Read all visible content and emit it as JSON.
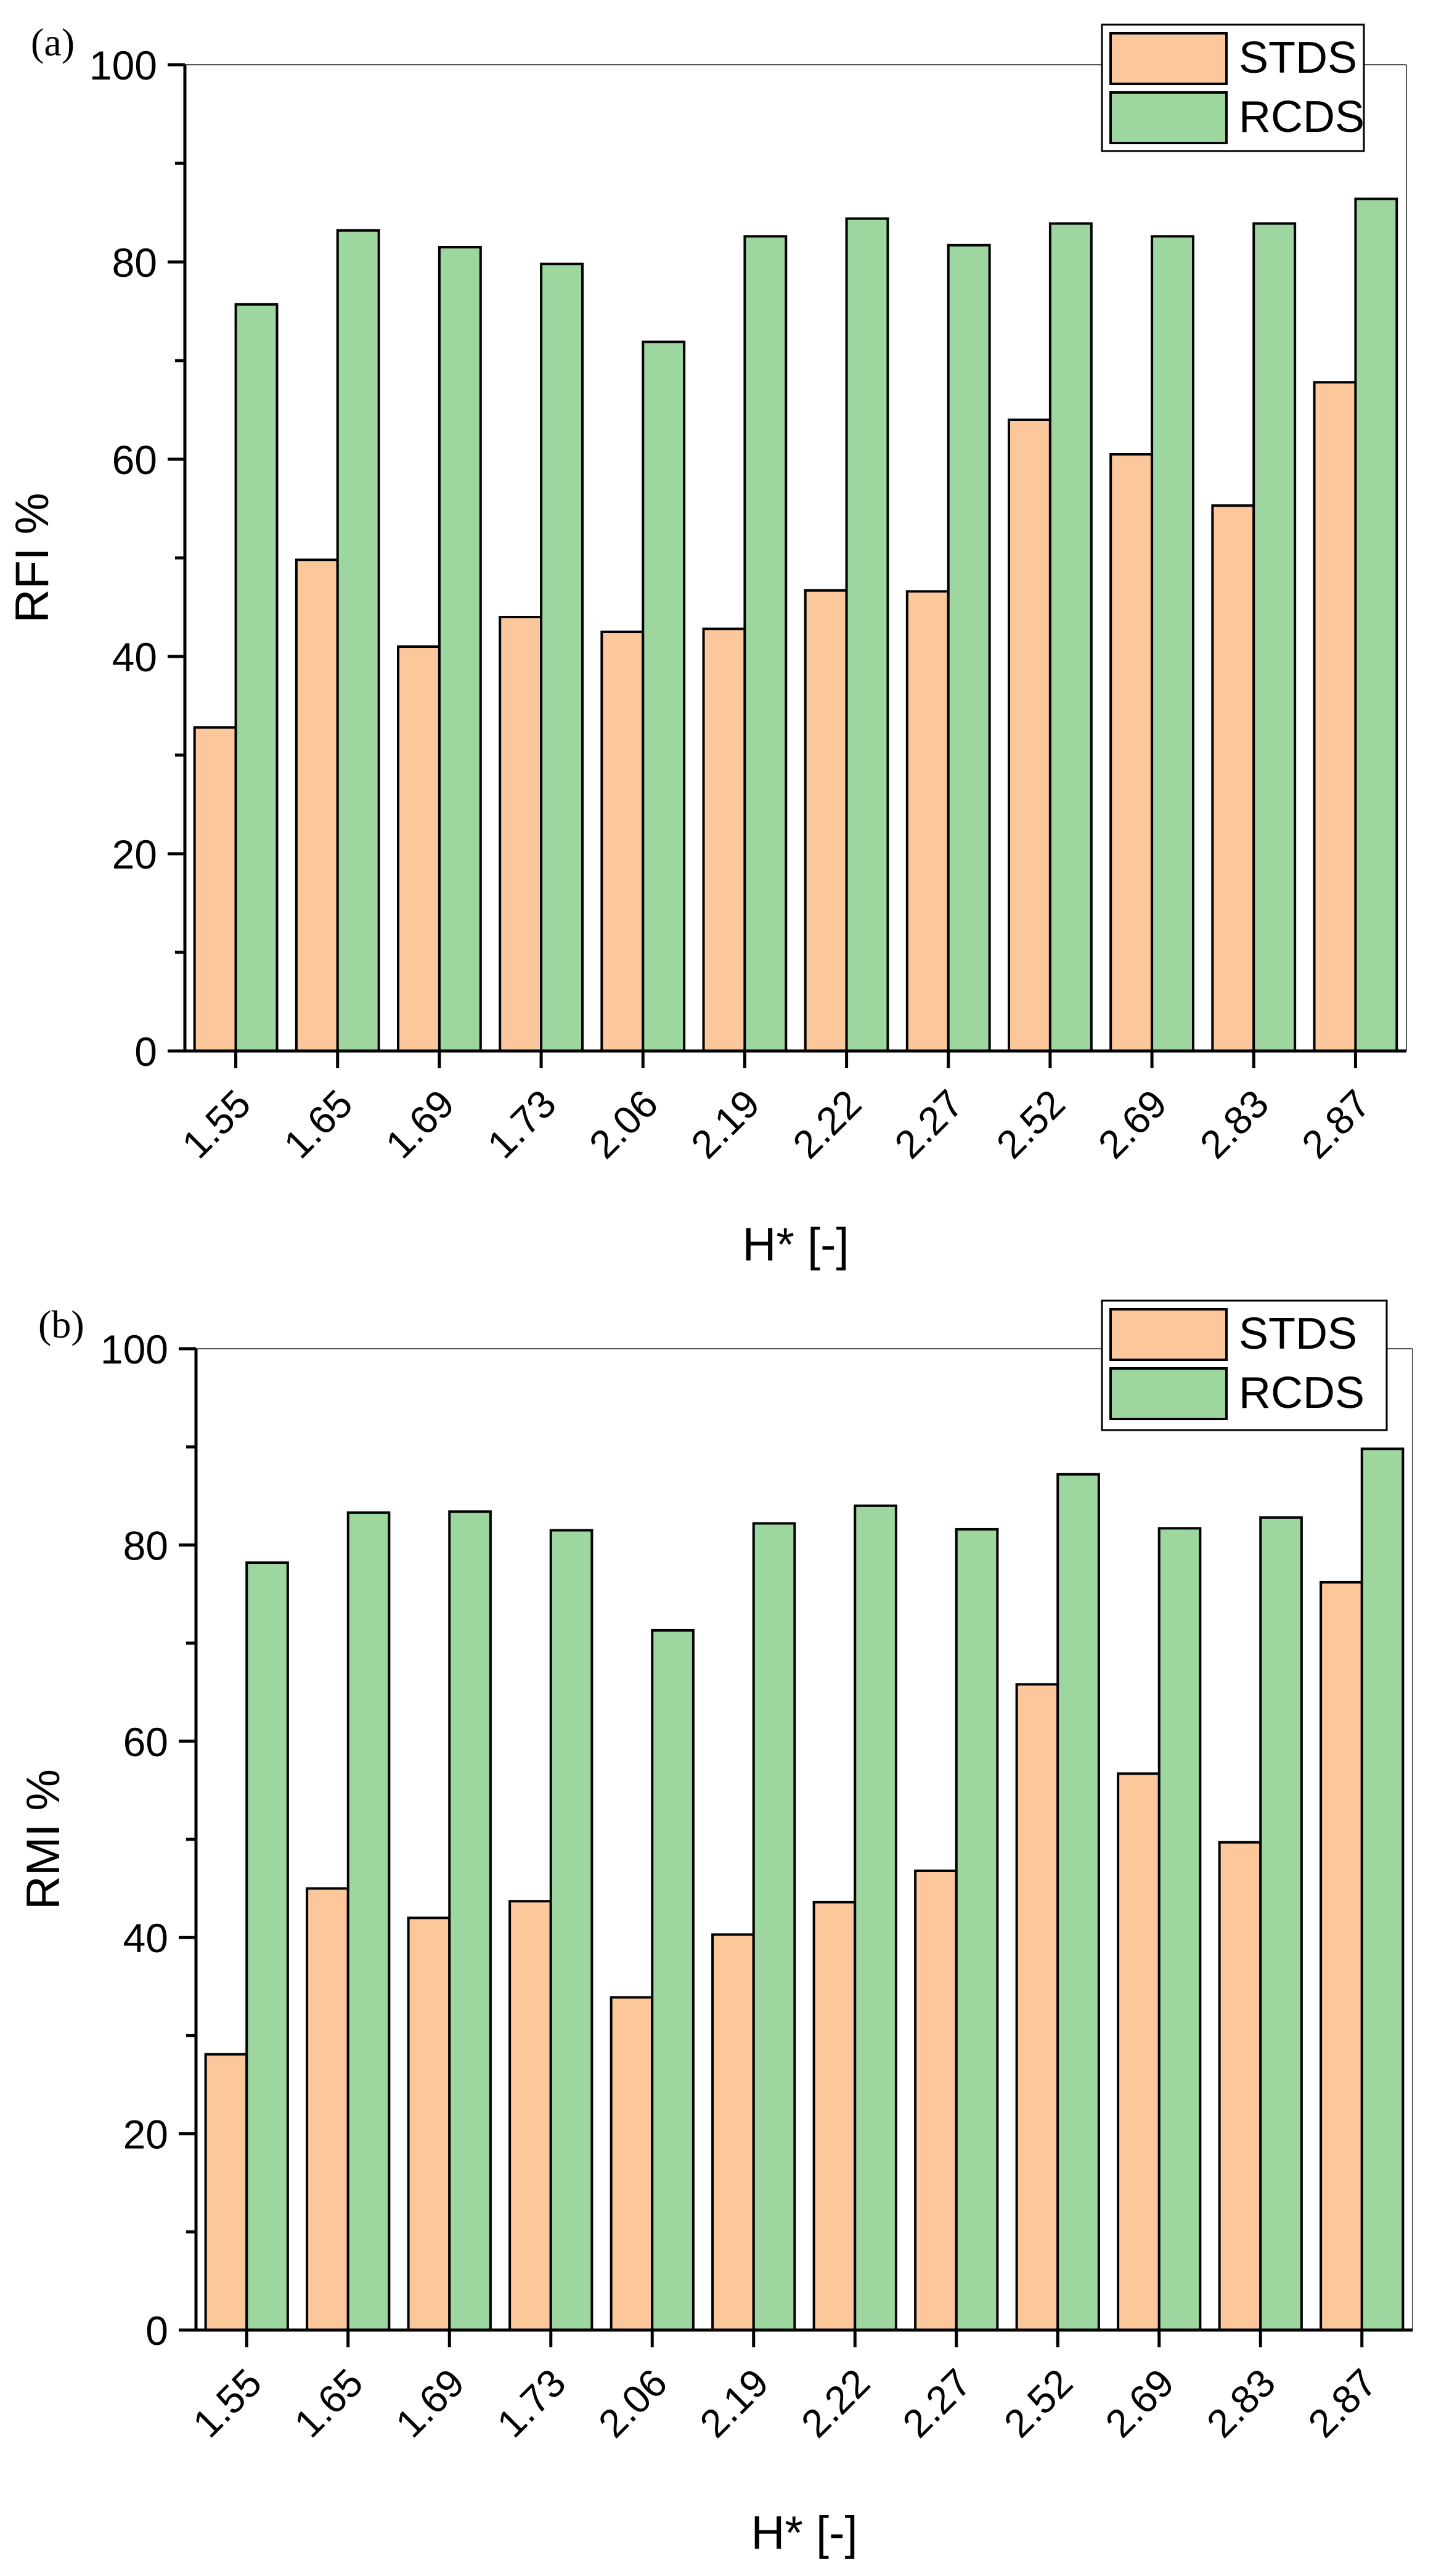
{
  "colors": {
    "stds": "#fcc89b",
    "rcds": "#9dd79f",
    "axis": "#000000"
  },
  "chart_data": [
    {
      "type": "bar",
      "panel_label": "(a)",
      "categories": [
        "1.55",
        "1.65",
        "1.69",
        "1.73",
        "2.06",
        "2.19",
        "2.22",
        "2.27",
        "2.52",
        "2.69",
        "2.83",
        "2.87"
      ],
      "series": [
        {
          "name": "STDS",
          "values": [
            32.8,
            49.8,
            41.0,
            44.0,
            42.5,
            42.8,
            46.7,
            46.6,
            64.0,
            60.5,
            55.3,
            67.8
          ]
        },
        {
          "name": "RCDS",
          "values": [
            75.7,
            83.2,
            81.5,
            79.8,
            71.9,
            82.6,
            84.4,
            81.7,
            83.9,
            82.6,
            83.9,
            86.4
          ]
        }
      ],
      "xlabel": "H* [-]",
      "ylabel": "RFI %",
      "ylim": [
        0,
        100
      ],
      "yticks": [
        "0",
        "20",
        "40",
        "60",
        "80",
        "100"
      ],
      "legend_position": "top-right"
    },
    {
      "type": "bar",
      "panel_label": "(b)",
      "categories": [
        "1.55",
        "1.65",
        "1.69",
        "1.73",
        "2.06",
        "2.19",
        "2.22",
        "2.27",
        "2.52",
        "2.69",
        "2.83",
        "2.87"
      ],
      "series": [
        {
          "name": "STDS",
          "values": [
            28.1,
            45.0,
            42.0,
            43.7,
            33.9,
            40.3,
            43.6,
            46.8,
            65.8,
            56.7,
            49.7,
            76.2
          ]
        },
        {
          "name": "RCDS",
          "values": [
            78.2,
            83.3,
            83.4,
            81.5,
            71.3,
            82.2,
            84.0,
            81.6,
            87.2,
            81.7,
            82.8,
            89.8
          ]
        }
      ],
      "xlabel": "H* [-]",
      "ylabel": "RMI %",
      "ylim": [
        0,
        100
      ],
      "yticks": [
        "0",
        "20",
        "40",
        "60",
        "80",
        "100"
      ],
      "legend_position": "top-right"
    }
  ]
}
